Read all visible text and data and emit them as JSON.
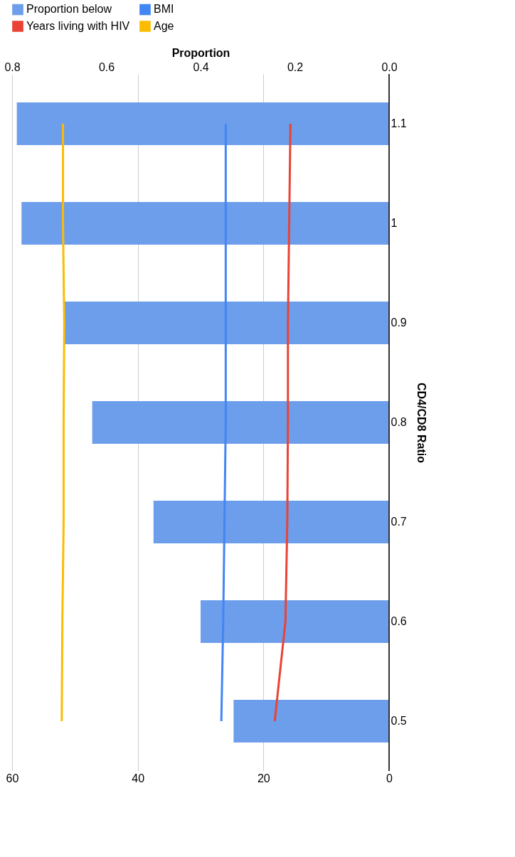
{
  "chart_data": {
    "type": "bar",
    "orientation": "horizontal",
    "categories": [
      "1.1",
      "1",
      "0.9",
      "0.8",
      "0.7",
      "0.6",
      "0.5"
    ],
    "series": [
      {
        "name": "Proportion below",
        "axis": "x2",
        "color": "#6d9eeb",
        "values": [
          0.79,
          0.78,
          0.69,
          0.63,
          0.5,
          0.4,
          0.33
        ]
      },
      {
        "name": "BMI",
        "type": "line",
        "color": "#4285f4",
        "values": [
          26.0,
          26.0,
          26.0,
          26.0,
          26.2,
          26.4,
          26.7
        ]
      },
      {
        "name": "Years living with HIV",
        "type": "line",
        "color": "#ea4335",
        "values": [
          15.7,
          15.9,
          16.1,
          16.1,
          16.2,
          16.5,
          18.2
        ]
      },
      {
        "name": "Age",
        "type": "line",
        "color": "#fbbc04",
        "values": [
          51.9,
          51.9,
          51.7,
          51.8,
          51.8,
          52.0,
          52.1
        ]
      }
    ],
    "ylabel": "CD4/CD8 Ratio",
    "x2label": "Proportion",
    "xlim": [
      60,
      0
    ],
    "xticks": [
      60,
      40,
      20,
      0
    ],
    "x2lim": [
      0.8,
      0
    ],
    "x2ticks": [
      {
        "value": 0.8,
        "label": "0.8"
      },
      {
        "value": 0.6,
        "label": "0.6"
      },
      {
        "value": 0.4,
        "label": "0.4"
      },
      {
        "value": 0.2,
        "label": "0.2"
      },
      {
        "value": 0,
        "label": "0.0"
      }
    ],
    "grid": "x",
    "legend": "top"
  }
}
